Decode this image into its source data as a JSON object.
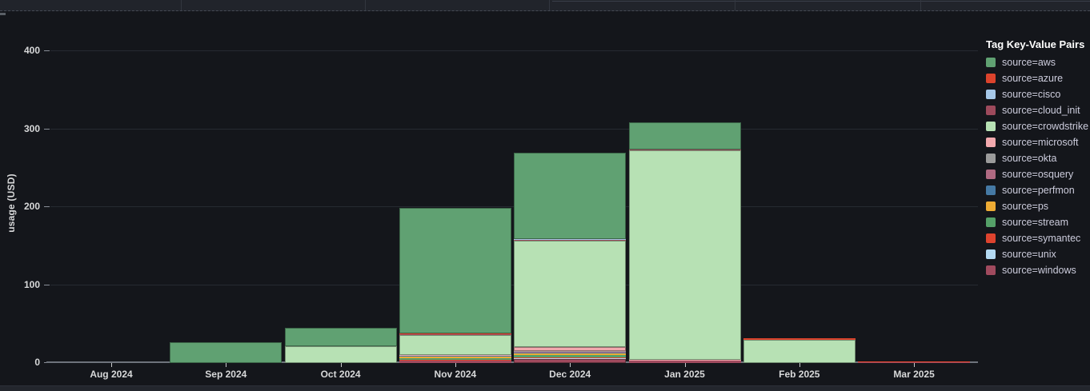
{
  "chart_data": {
    "type": "bar",
    "stacked": true,
    "stack_direction": "first-series-on-top",
    "title": "",
    "xlabel": "",
    "ylabel": "usage (USD)",
    "categories": [
      "Aug 2024",
      "Sep 2024",
      "Oct 2024",
      "Nov 2024",
      "Dec 2024",
      "Jan 2025",
      "Feb 2025",
      "Mar 2025"
    ],
    "yticks": [
      0,
      100,
      200,
      300,
      400
    ],
    "ylim": [
      0,
      415
    ],
    "grid": true,
    "legend": {
      "title": "Tag Key-Value Pairs",
      "position": "right"
    },
    "series": [
      {
        "name": "source=aws",
        "color": "#60a172",
        "values": [
          0,
          27,
          23,
          161,
          110,
          35,
          0,
          0
        ]
      },
      {
        "name": "source=azure",
        "color": "#dc432c",
        "values": [
          0,
          0,
          0,
          0.5,
          1,
          0.5,
          2,
          0.5
        ]
      },
      {
        "name": "source=cisco",
        "color": "#a6c8e8",
        "values": [
          0,
          0,
          0,
          0.3,
          0.5,
          0,
          0,
          0
        ]
      },
      {
        "name": "source=cloud_init",
        "color": "#9d4a5c",
        "values": [
          0,
          0,
          0,
          0.5,
          1,
          0.5,
          0,
          0
        ]
      },
      {
        "name": "source=crowdstrike",
        "color": "#b7e1b4",
        "values": [
          0,
          0,
          22,
          26,
          137,
          269,
          30,
          0
        ]
      },
      {
        "name": "source=microsoft",
        "color": "#f2a9ae",
        "values": [
          0,
          0,
          0,
          1,
          5,
          1,
          0,
          0
        ]
      },
      {
        "name": "source=okta",
        "color": "#9b9b9b",
        "values": [
          0,
          0,
          0,
          0.3,
          1,
          0,
          0,
          0
        ]
      },
      {
        "name": "source=osquery",
        "color": "#b06a82",
        "values": [
          0,
          0,
          0,
          0.3,
          1,
          0,
          0,
          0
        ]
      },
      {
        "name": "source=perfmon",
        "color": "#4579a4",
        "values": [
          0,
          0,
          0,
          0.3,
          1,
          0,
          0,
          0
        ]
      },
      {
        "name": "source=ps",
        "color": "#edab34",
        "values": [
          0,
          0,
          0,
          2,
          2,
          0,
          0,
          0
        ]
      },
      {
        "name": "source=stream",
        "color": "#55a068",
        "values": [
          0,
          0,
          0,
          2.5,
          2.5,
          0,
          0,
          0
        ]
      },
      {
        "name": "source=symantec",
        "color": "#de432e",
        "values": [
          0,
          0,
          0,
          1.5,
          1.5,
          0,
          0,
          0.5
        ]
      },
      {
        "name": "source=unix",
        "color": "#b3d9f2",
        "values": [
          0,
          0,
          0,
          0,
          1,
          0,
          0,
          0
        ]
      },
      {
        "name": "source=windows",
        "color": "#a04a5e",
        "values": [
          0,
          0,
          0,
          2.5,
          5,
          3,
          0,
          1
        ]
      }
    ],
    "colors": {
      "panel_background": "#14161b",
      "top_strip_background": "#21242b",
      "grid_line": "#262a31",
      "axis_line": "#6e737c",
      "tick_text": "#d8d9da",
      "legend_text": "#ccccdc",
      "legend_title_text": "#ffffff"
    }
  }
}
